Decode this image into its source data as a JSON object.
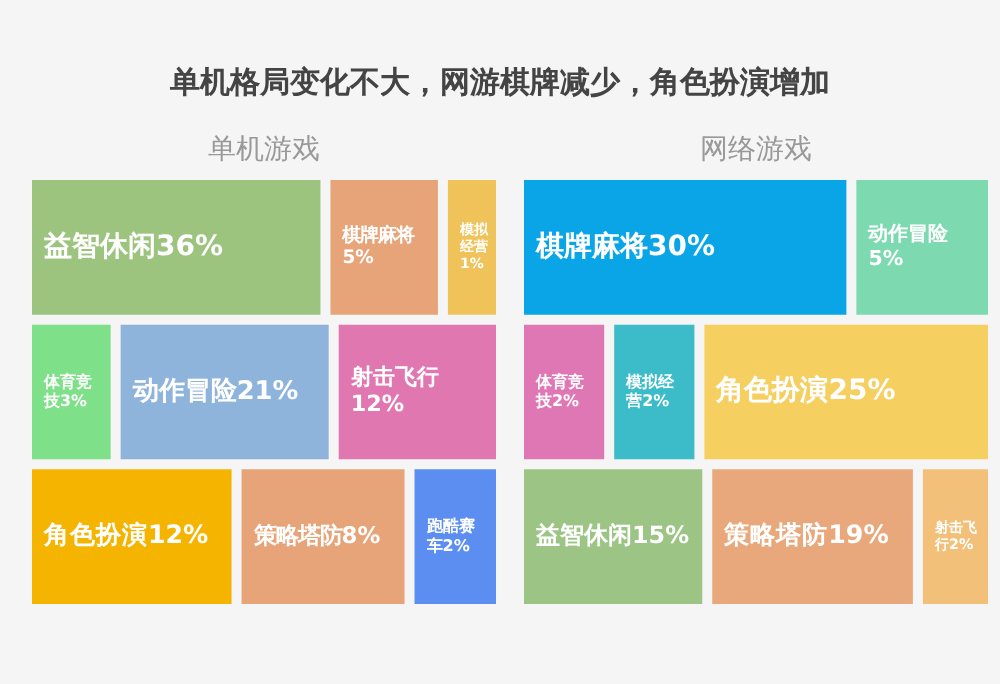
{
  "chart_data": [
    {
      "type": "other",
      "title": "单机格局变化不大，网游棋牌减少，角色扮演增加",
      "subtitle": "单机游戏",
      "categories": [
        "益智休闲",
        "棋牌麻将",
        "模拟经营",
        "体育竞技",
        "动作冒险",
        "射击飞行",
        "角色扮演",
        "策略塔防",
        "跑酷赛车"
      ],
      "values": [
        36,
        5,
        1,
        3,
        21,
        12,
        12,
        8,
        2
      ],
      "value_labels": [
        "36%",
        "5%",
        "1%",
        "3%",
        "21%",
        "12%",
        "12%",
        "8%",
        "2%"
      ],
      "colors": [
        "#9dc47f",
        "#e8a479",
        "#f0c35a",
        "#7fe08a",
        "#8fb4dc",
        "#e077b0",
        "#f4b400",
        "#e8a479",
        "#5b8ef0"
      ]
    },
    {
      "type": "other",
      "subtitle": "网络游戏",
      "categories": [
        "棋牌麻将",
        "动作冒险",
        "体育竞技",
        "模拟经营",
        "角色扮演",
        "益智休闲",
        "策略塔防",
        "射击飞行"
      ],
      "values": [
        30,
        5,
        2,
        2,
        25,
        15,
        19,
        2
      ],
      "value_labels": [
        "30%",
        "5%",
        "2%",
        "2%",
        "25%",
        "15%",
        "19%",
        "2%"
      ],
      "colors": [
        "#0aa5e6",
        "#7cd9b0",
        "#e077b5",
        "#3bbcc8",
        "#f5cf60",
        "#9cc485",
        "#e8a87c",
        "#f2c078"
      ]
    }
  ]
}
